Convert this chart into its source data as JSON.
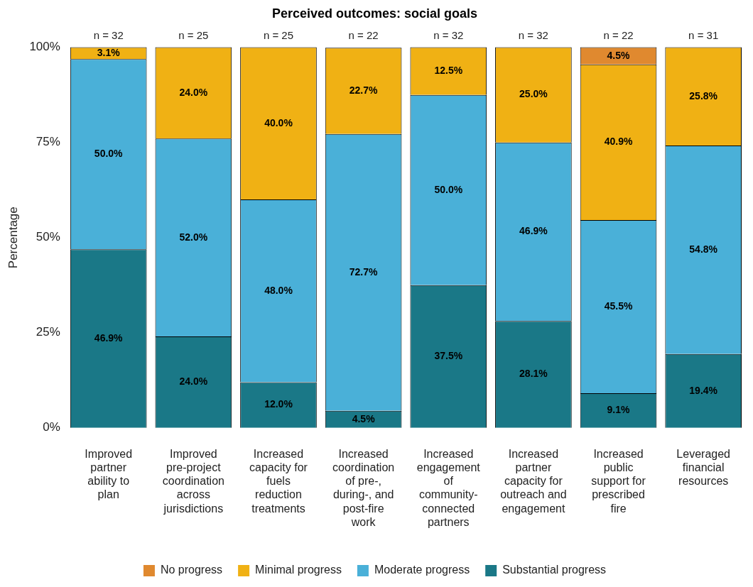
{
  "chart_data": {
    "type": "bar",
    "stacked": true,
    "title": "Perceived outcomes: social goals",
    "ylabel": "Percentage",
    "categories": [
      "Improved partner ability to plan",
      "Improved pre-project coordination across jurisdictions",
      "Increased capacity for fuels reduction treatments",
      "Increased coordination of pre-, during-, and post-fire work",
      "Increased engagement of community-connected partners",
      "Increased partner capacity for outreach and engagement",
      "Increased public support for prescribed fire",
      "Leveraged financial resources"
    ],
    "series": [
      {
        "name": "Substantial progress",
        "color": "#1a7887",
        "values": [
          46.9,
          24.0,
          12.0,
          4.5,
          37.5,
          28.1,
          9.1,
          19.4
        ],
        "value_labels": [
          "46.9%",
          "24.0%",
          "12.0%",
          "4.5%",
          "37.5%",
          "28.1%",
          "9.1%",
          "19.4%"
        ]
      },
      {
        "name": "Moderate progress",
        "color": "#4ab0d8",
        "values": [
          50.0,
          52.0,
          48.0,
          72.7,
          50.0,
          46.9,
          45.5,
          54.8
        ],
        "value_labels": [
          "50.0%",
          "52.0%",
          "48.0%",
          "72.7%",
          "50.0%",
          "46.9%",
          "45.5%",
          "54.8%"
        ]
      },
      {
        "name": "Minimal progress",
        "color": "#f0b114",
        "values": [
          3.1,
          24.0,
          40.0,
          22.7,
          12.5,
          25.0,
          40.9,
          25.8
        ],
        "value_labels": [
          "3.1%",
          "24.0%",
          "40.0%",
          "22.7%",
          "12.5%",
          "25.0%",
          "40.9%",
          "25.8%"
        ]
      },
      {
        "name": "No progress",
        "color": "#e0892f",
        "values": [
          null,
          null,
          null,
          null,
          null,
          null,
          4.5,
          null
        ],
        "value_labels": [
          null,
          null,
          null,
          null,
          null,
          null,
          "4.5%",
          null
        ]
      }
    ],
    "ylim": [
      0,
      100
    ],
    "yticks": [
      {
        "value": 0,
        "label": "0%"
      },
      {
        "value": 25,
        "label": "25%"
      },
      {
        "value": 50,
        "label": "50%"
      },
      {
        "value": 75,
        "label": "75%"
      },
      {
        "value": 100,
        "label": "100%"
      }
    ],
    "grid": false,
    "legend": "bottom",
    "annotations": [
      {
        "text": "n = 32",
        "x": "Improved partner ability to plan",
        "y": 100
      },
      {
        "text": "n = 25",
        "x": "Improved pre-project coordination across jurisdictions",
        "y": 100
      },
      {
        "text": "n = 25",
        "x": "Increased capacity for fuels reduction treatments",
        "y": 100
      },
      {
        "text": "n = 22",
        "x": "Increased coordination of pre-, during-, and post-fire work",
        "y": 100
      },
      {
        "text": "n = 32",
        "x": "Increased engagement of community-connected partners",
        "y": 100
      },
      {
        "text": "n = 32",
        "x": "Increased partner capacity for outreach and engagement",
        "y": 100
      },
      {
        "text": "n = 22",
        "x": "Increased public support for prescribed fire",
        "y": 100
      },
      {
        "text": "n = 31",
        "x": "Leveraged financial resources",
        "y": 100
      }
    ]
  }
}
